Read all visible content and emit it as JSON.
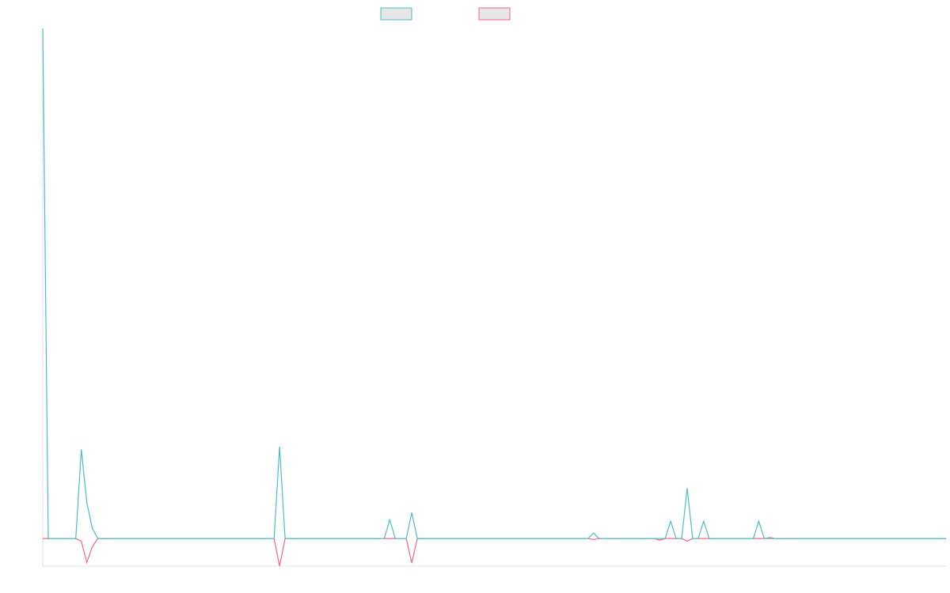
{
  "chart_data": {
    "type": "line",
    "categories": [
      null,
      null,
      null,
      null,
      null,
      null,
      null,
      null,
      null,
      null,
      null,
      null,
      null,
      null,
      null,
      null,
      null,
      null,
      null,
      null,
      null,
      null,
      null,
      null,
      null,
      null,
      null,
      null,
      null,
      null,
      null,
      null,
      null,
      null,
      null,
      null,
      null,
      null,
      null,
      null,
      null,
      null,
      null,
      null,
      null,
      null,
      null,
      null,
      null,
      null,
      null,
      null,
      null,
      null,
      null,
      null,
      null,
      null,
      null,
      null,
      null,
      null,
      null,
      null,
      null,
      null,
      null,
      null,
      null,
      null,
      null,
      null,
      null,
      null,
      null,
      null,
      null,
      null,
      null,
      null,
      null,
      null,
      null,
      null,
      null,
      null,
      null,
      null,
      null,
      null,
      null,
      null,
      null,
      null,
      null,
      null,
      null,
      null,
      null,
      null,
      null,
      null,
      null,
      null,
      null,
      null,
      null,
      null,
      null,
      null,
      null,
      null,
      null,
      null,
      null,
      null,
      null,
      null,
      null,
      null,
      null,
      null,
      null,
      null,
      null,
      null,
      null,
      null,
      null,
      null,
      null,
      null,
      null,
      null,
      null,
      null,
      null,
      null,
      null,
      null,
      null,
      null,
      null,
      null,
      null,
      null,
      null,
      null,
      null,
      null,
      null,
      null,
      null,
      null,
      null,
      null,
      null,
      null,
      null,
      null,
      null,
      null,
      null,
      null,
      null
    ],
    "series": [
      {
        "color": "#4bc0c0",
        "values": [
          100,
          0,
          0,
          0,
          0,
          0,
          0,
          17.5,
          7.1,
          2,
          0,
          0,
          0,
          0,
          0,
          0,
          0,
          0,
          0,
          0,
          0,
          0,
          0,
          0,
          0,
          0,
          0,
          0,
          0,
          0,
          0,
          0,
          0,
          0,
          0,
          0,
          0,
          0,
          0,
          0,
          0,
          0,
          0,
          18,
          0,
          0,
          0,
          0,
          0,
          0,
          0,
          0,
          0,
          0,
          0,
          0,
          0,
          0,
          0,
          0,
          0,
          0,
          0,
          3.7,
          0,
          0,
          0,
          5.1,
          0,
          0,
          0,
          0,
          0,
          0,
          0,
          0,
          0,
          0,
          0,
          0,
          0,
          0,
          0,
          0,
          0,
          0,
          0,
          0,
          0,
          0,
          0,
          0,
          0,
          0,
          0,
          0,
          0,
          0,
          0,
          0,
          1.1,
          0,
          0,
          0,
          0,
          0,
          0,
          0,
          0,
          0,
          0,
          0,
          0,
          0,
          3.4,
          0,
          0,
          9.9,
          0,
          0,
          3.4,
          0,
          0,
          0,
          0,
          0,
          0,
          0,
          0,
          0,
          3.4,
          0,
          0,
          0,
          0,
          0,
          0,
          0,
          0,
          0,
          0,
          0,
          0,
          0,
          0,
          0,
          0,
          0,
          0,
          0,
          0,
          0,
          0,
          0,
          0,
          0,
          0,
          0,
          0,
          0,
          0,
          0,
          0,
          0,
          0
        ]
      },
      {
        "color": "#ff6384",
        "values": [
          0,
          0,
          0,
          0,
          0,
          0,
          0,
          -0.5,
          -4.7,
          -1.6,
          0,
          0,
          0,
          0,
          0,
          0,
          0,
          0,
          0,
          0,
          0,
          0,
          0,
          0,
          0,
          0,
          0,
          0,
          0,
          0,
          0,
          0,
          0,
          0,
          0,
          0,
          0,
          0,
          0,
          0,
          0,
          0,
          0,
          -5.4,
          0,
          0,
          0,
          0,
          0,
          0,
          0,
          0,
          0,
          0,
          0,
          0,
          0,
          0,
          0,
          0,
          0,
          0,
          0,
          0,
          0,
          0,
          0,
          -4.8,
          0,
          0,
          0,
          0,
          0,
          0,
          0,
          0,
          0,
          0,
          0,
          0,
          0,
          0,
          0,
          0,
          0,
          0,
          0,
          0,
          0,
          0,
          0,
          0,
          0,
          0,
          0,
          0,
          0,
          0,
          0,
          0,
          -0.2,
          0,
          0,
          0,
          0,
          0,
          0,
          0,
          0,
          0,
          0,
          0,
          -0.3,
          0,
          0,
          0,
          0,
          -0.5,
          0,
          0,
          0,
          0,
          0,
          0,
          0,
          0,
          0,
          0,
          0,
          0,
          0,
          0,
          0.2,
          0,
          0,
          0,
          0,
          0,
          0,
          0,
          0,
          0,
          0,
          0,
          0,
          0,
          0,
          0,
          0,
          0,
          0,
          0,
          0,
          0,
          0,
          0,
          0,
          0,
          0,
          0,
          0,
          0,
          0,
          0,
          0
        ]
      }
    ],
    "ylim": [
      -5.4,
      100
    ]
  }
}
